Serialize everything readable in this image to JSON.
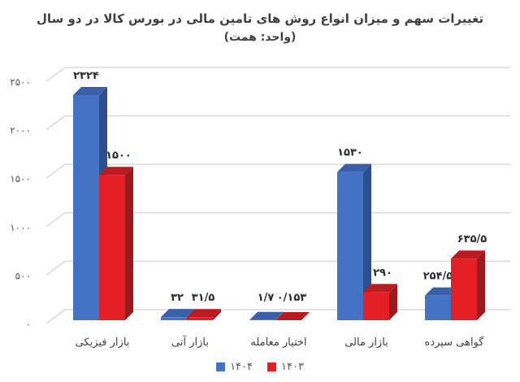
{
  "title": "تغییرات سهم و میزان انواع روش های تامین مالی در بورس کالا در دو سال",
  "subtitle": "(واحد: همت)",
  "colors": {
    "series_1404": "#4472c4",
    "series_1404_top": "#3a61a8",
    "series_1404_side": "#2f4f8c",
    "series_1403": "#e31e24",
    "series_1403_top": "#b81c22",
    "series_1403_side": "#9b1a1e",
    "grid": "#d9d9d9"
  },
  "legend": [
    {
      "label": "۱۴۰۴",
      "color": "#4472c4"
    },
    {
      "label": "۱۴۰۳",
      "color": "#e31e24"
    }
  ],
  "y_ticks": [
    "۰",
    "۵۰۰",
    "۱۰۰۰",
    "۱۵۰۰",
    "۲۰۰۰",
    "۲۵۰۰"
  ],
  "chart_data": {
    "type": "bar",
    "title": "تغییرات سهم و میزان انواع روش های تامین مالی در بورس کالا در دو سال",
    "subtitle": "(واحد: همت)",
    "xlabel": "",
    "ylabel": "",
    "ylim": [
      0,
      2500
    ],
    "y_ticks": [
      0,
      500,
      1000,
      1500,
      2000,
      2500
    ],
    "grid": true,
    "three_d": true,
    "legend_position": "bottom",
    "categories": [
      "بازار فیزیکی",
      "بازار آتی",
      "اختیار معامله",
      "بازار مالی",
      "گواهی سپرده"
    ],
    "series": [
      {
        "name": "۱۴۰۴",
        "values": [
          2324,
          32,
          1.7,
          1530,
          254.5
        ],
        "labels": [
          "۲۳۲۴",
          "۳۲",
          "۱/۷",
          "۱۵۳۰",
          "۲۵۴/۵"
        ]
      },
      {
        "name": "۱۴۰۳",
        "values": [
          1500,
          31.5,
          0.153,
          290,
          635.5
        ],
        "labels": [
          "۱۵۰۰",
          "۳۱/۵",
          "۰/۱۵۳",
          "۲۹۰",
          "۶۳۵/۵"
        ]
      }
    ]
  }
}
